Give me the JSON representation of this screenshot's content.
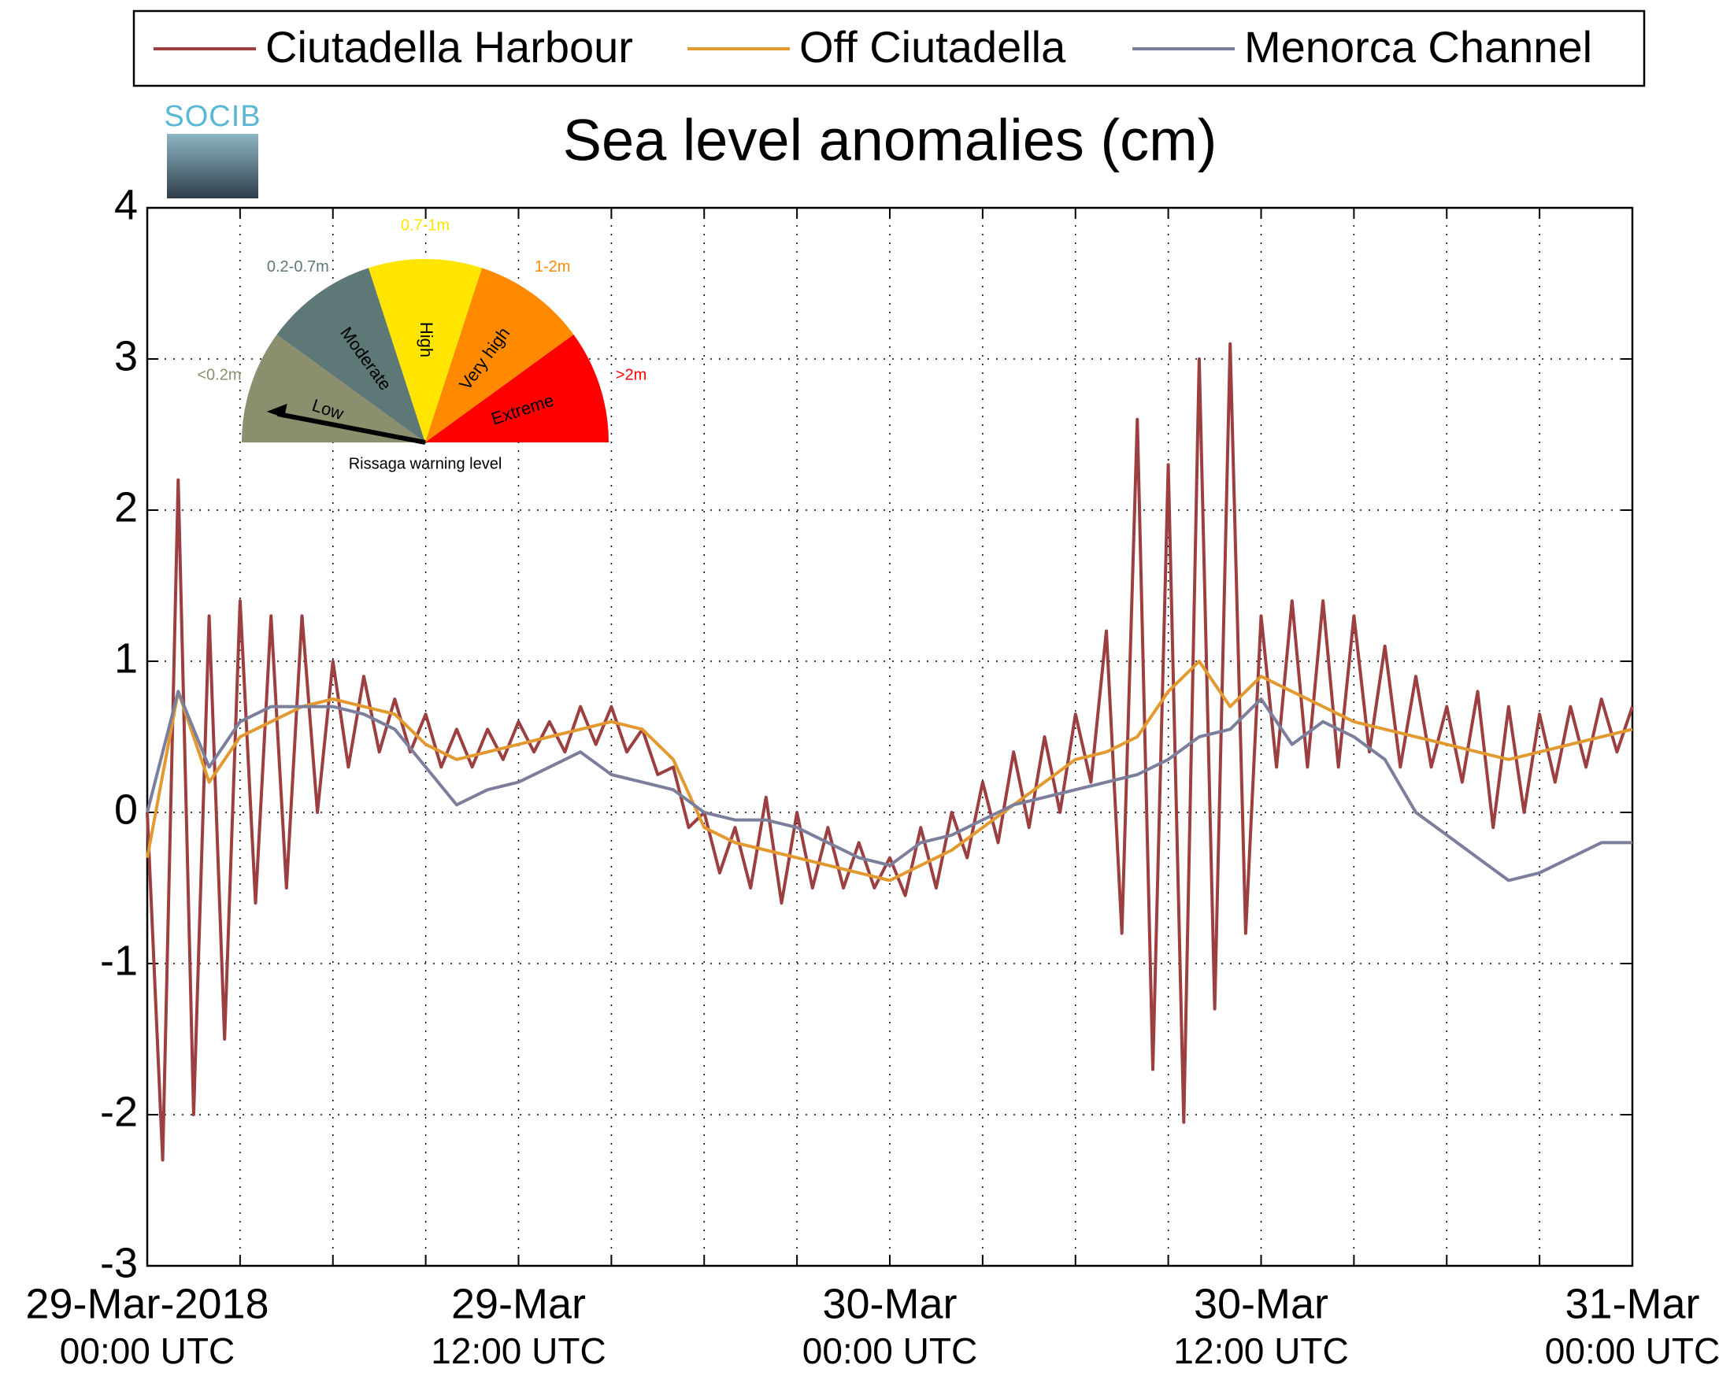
{
  "chart_data": {
    "type": "line",
    "title": "Sea level anomalies (cm)",
    "xlim": [
      0,
      48
    ],
    "xticks": [
      {
        "value": 0,
        "label": [
          "29-Mar-2018",
          "00:00 UTC"
        ]
      },
      {
        "value": 12,
        "label": [
          "29-Mar",
          "12:00 UTC"
        ]
      },
      {
        "value": 24,
        "label": [
          "30-Mar",
          "00:00 UTC"
        ]
      },
      {
        "value": 36,
        "label": [
          "30-Mar",
          "12:00 UTC"
        ]
      },
      {
        "value": 48,
        "label": [
          "31-Mar",
          "00:00 UTC"
        ]
      }
    ],
    "minor_xticks": [
      3,
      6,
      9,
      15,
      18,
      21,
      27,
      30,
      33,
      39,
      42,
      45
    ],
    "ylim": [
      -3,
      4
    ],
    "yticks": [
      -3,
      -2,
      -1,
      0,
      1,
      2,
      3,
      4
    ],
    "grid": true,
    "legend": "top",
    "series": [
      {
        "name": "Ciutadella Harbour",
        "color": "#9b3f40",
        "x": [
          0,
          0.5,
          1,
          1.5,
          2,
          2.5,
          3,
          3.5,
          4,
          4.5,
          5,
          5.5,
          6,
          6.5,
          7,
          7.5,
          8,
          8.5,
          9,
          9.5,
          10,
          10.5,
          11,
          11.5,
          12,
          12.5,
          13,
          13.5,
          14,
          14.5,
          15,
          15.5,
          16,
          16.5,
          17,
          17.5,
          18,
          18.5,
          19,
          19.5,
          20,
          20.5,
          21,
          21.5,
          22,
          22.5,
          23,
          23.5,
          24,
          24.5,
          25,
          25.5,
          26,
          26.5,
          27,
          27.5,
          28,
          28.5,
          29,
          29.5,
          30,
          30.5,
          31,
          31.5,
          32,
          32.5,
          33,
          33.5,
          34,
          34.5,
          35,
          35.5,
          36,
          36.5,
          37,
          37.5,
          38,
          38.5,
          39,
          39.5,
          40,
          40.5,
          41,
          41.5,
          42,
          42.5,
          43,
          43.5,
          44,
          44.5,
          45,
          45.5,
          46,
          46.5,
          47,
          47.5,
          48
        ],
        "values": [
          0,
          -2.3,
          2.2,
          -2.0,
          1.3,
          -1.5,
          1.4,
          -0.6,
          1.3,
          -0.5,
          1.3,
          0.0,
          1.0,
          0.3,
          0.9,
          0.4,
          0.75,
          0.4,
          0.65,
          0.3,
          0.55,
          0.3,
          0.55,
          0.35,
          0.6,
          0.4,
          0.6,
          0.4,
          0.7,
          0.45,
          0.7,
          0.4,
          0.55,
          0.25,
          0.3,
          -0.1,
          0.0,
          -0.4,
          -0.1,
          -0.5,
          0.1,
          -0.6,
          0.0,
          -0.5,
          -0.1,
          -0.5,
          -0.2,
          -0.5,
          -0.3,
          -0.55,
          -0.1,
          -0.5,
          0.0,
          -0.3,
          0.2,
          -0.2,
          0.4,
          -0.1,
          0.5,
          0.0,
          0.65,
          0.2,
          1.2,
          -0.8,
          2.6,
          -1.7,
          2.3,
          -2.05,
          3.0,
          -1.3,
          3.1,
          -0.8,
          1.3,
          0.3,
          1.4,
          0.3,
          1.4,
          0.3,
          1.3,
          0.4,
          1.1,
          0.3,
          0.9,
          0.3,
          0.7,
          0.2,
          0.8,
          -0.1,
          0.7,
          0.0,
          0.65,
          0.2,
          0.7,
          0.3,
          0.75,
          0.4,
          0.7
        ]
      },
      {
        "name": "Off Ciutadella",
        "color": "#e29a30",
        "x": [
          0,
          1,
          2,
          3,
          4,
          5,
          6,
          7,
          8,
          9,
          10,
          11,
          12,
          13,
          14,
          15,
          16,
          17,
          18,
          19,
          20,
          21,
          22,
          23,
          24,
          25,
          26,
          27,
          28,
          29,
          30,
          31,
          32,
          33,
          34,
          35,
          36,
          37,
          38,
          39,
          40,
          41,
          42,
          43,
          44,
          45,
          46,
          47,
          48
        ],
        "values": [
          -0.3,
          0.8,
          0.2,
          0.5,
          0.6,
          0.7,
          0.75,
          0.7,
          0.65,
          0.45,
          0.35,
          0.4,
          0.45,
          0.5,
          0.55,
          0.6,
          0.55,
          0.35,
          -0.1,
          -0.2,
          -0.25,
          -0.3,
          -0.35,
          -0.4,
          -0.45,
          -0.35,
          -0.25,
          -0.1,
          0.05,
          0.2,
          0.35,
          0.4,
          0.5,
          0.8,
          1.0,
          0.7,
          0.9,
          0.8,
          0.7,
          0.6,
          0.55,
          0.5,
          0.45,
          0.4,
          0.35,
          0.4,
          0.45,
          0.5,
          0.55
        ]
      },
      {
        "name": "Menorca Channel",
        "color": "#7b7f9b",
        "x": [
          0,
          1,
          2,
          3,
          4,
          5,
          6,
          7,
          8,
          9,
          10,
          11,
          12,
          13,
          14,
          15,
          16,
          17,
          18,
          19,
          20,
          21,
          22,
          23,
          24,
          25,
          26,
          27,
          28,
          29,
          30,
          31,
          32,
          33,
          34,
          35,
          36,
          37,
          38,
          39,
          40,
          41,
          42,
          43,
          44,
          45,
          46,
          47,
          48
        ],
        "values": [
          0.0,
          0.8,
          0.3,
          0.6,
          0.7,
          0.7,
          0.7,
          0.65,
          0.55,
          0.3,
          0.05,
          0.15,
          0.2,
          0.3,
          0.4,
          0.25,
          0.2,
          0.15,
          0.0,
          -0.05,
          -0.05,
          -0.1,
          -0.2,
          -0.3,
          -0.35,
          -0.2,
          -0.15,
          -0.05,
          0.05,
          0.1,
          0.15,
          0.2,
          0.25,
          0.35,
          0.5,
          0.55,
          0.75,
          0.45,
          0.6,
          0.5,
          0.35,
          0.0,
          -0.15,
          -0.3,
          -0.45,
          -0.4,
          -0.3,
          -0.2,
          -0.2
        ]
      }
    ]
  },
  "inset": {
    "logo": "SOCIB",
    "caption": "Rissaga warning level",
    "levels": [
      {
        "label": "Low",
        "range": "<0.2m",
        "color": "#8b8f6d"
      },
      {
        "label": "Moderate",
        "range": "0.2-0.7m",
        "color": "#5e7878"
      },
      {
        "label": "High",
        "range": "0.7-1m",
        "color": "#ffe500"
      },
      {
        "label": "Very high",
        "range": "1-2m",
        "color": "#ff8a00"
      },
      {
        "label": "Extreme",
        "range": ">2m",
        "color": "#ff0000"
      }
    ]
  }
}
